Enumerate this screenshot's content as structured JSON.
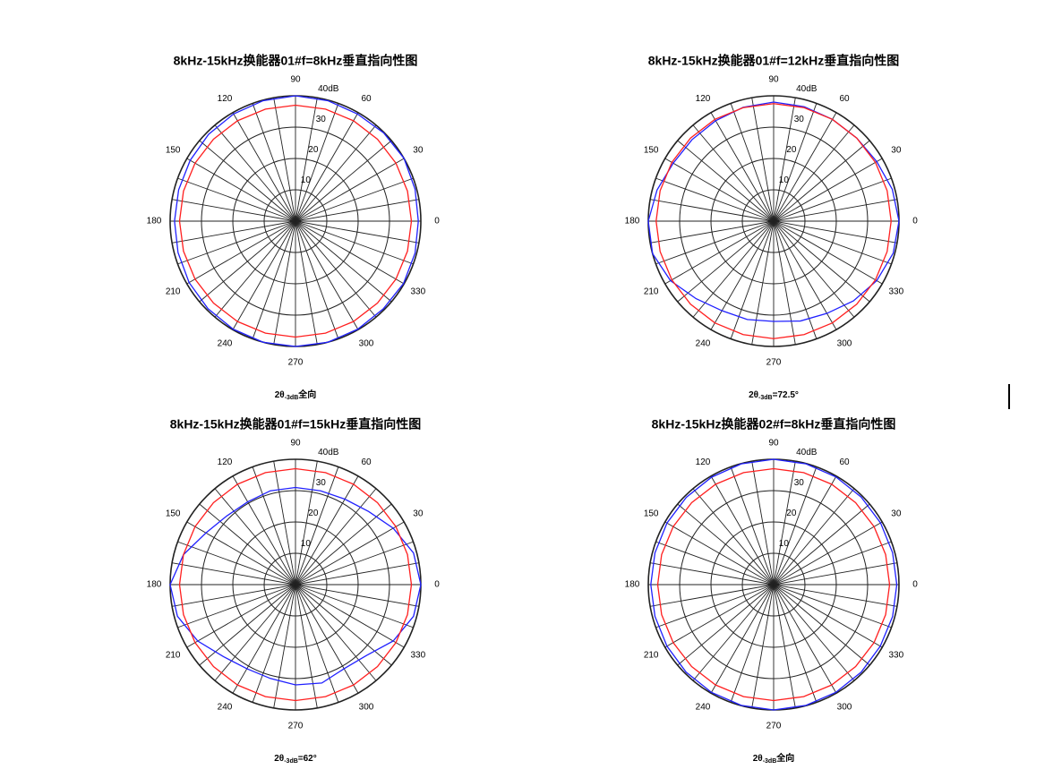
{
  "chart_data": [
    {
      "type": "polar",
      "title": "8kHz-15kHz换能器01#f=8kHz垂直指向性图",
      "caption": {
        "symbol": "2θ",
        "subscript": "-3dB",
        "value": "全向"
      },
      "theta": [
        0,
        15,
        30,
        45,
        60,
        75,
        90,
        105,
        120,
        135,
        150,
        165,
        180,
        195,
        210,
        225,
        240,
        255,
        270,
        285,
        300,
        315,
        330,
        345
      ],
      "series": [
        {
          "color": "#2020ff",
          "values": [
            39.2,
            39.5,
            40,
            39.8,
            39.5,
            39.8,
            40,
            39.8,
            39.5,
            39.2,
            38.8,
            38.6,
            38.6,
            38.8,
            39.2,
            39.5,
            39.8,
            40,
            40,
            40,
            39.8,
            39.6,
            39.8,
            39.5
          ]
        },
        {
          "color": "#ff2020",
          "values": [
            37,
            37,
            37,
            37,
            37,
            37,
            37,
            37,
            37,
            37,
            37,
            37,
            37,
            37,
            37,
            37,
            37,
            37,
            37,
            37,
            37,
            37,
            37,
            37
          ]
        }
      ],
      "rlim": [
        0,
        40
      ],
      "rticks": [
        10,
        20,
        30,
        {
          "value": 40,
          "label": "40dB"
        }
      ],
      "thetaticks": [
        0,
        30,
        60,
        90,
        120,
        150,
        180,
        210,
        240,
        270,
        300,
        330
      ],
      "thetagrid": [
        0,
        10,
        20,
        30,
        40,
        50,
        60,
        70,
        80,
        90,
        100,
        110,
        120,
        130,
        140,
        150,
        160,
        170,
        180,
        190,
        200,
        210,
        220,
        230,
        240,
        250,
        260,
        270,
        280,
        290,
        300,
        310,
        320,
        330,
        340,
        350
      ]
    },
    {
      "type": "polar",
      "title": "8kHz-15kHz换能器01#f=12kHz垂直指向性图",
      "caption": {
        "symbol": "2θ",
        "subscript": "-3dB",
        "value": "=72.5°"
      },
      "theta": [
        0,
        15,
        30,
        45,
        60,
        75,
        90,
        105,
        120,
        135,
        150,
        165,
        180,
        195,
        210,
        225,
        240,
        255,
        270,
        285,
        300,
        315,
        330,
        345
      ],
      "series": [
        {
          "color": "#2020ff",
          "values": [
            40,
            39.2,
            38,
            37.5,
            37.5,
            37.8,
            38,
            37.6,
            37,
            36.8,
            37,
            38.5,
            40,
            40,
            38,
            35,
            33,
            32.5,
            32,
            33,
            34,
            36,
            38,
            39.5
          ]
        },
        {
          "color": "#ff2020",
          "values": [
            37.5,
            37.5,
            37.5,
            37.5,
            37.5,
            37.5,
            37.5,
            37.5,
            37.5,
            37.5,
            37.5,
            37.5,
            37.5,
            37.5,
            37.5,
            37.5,
            37.5,
            37.5,
            37.5,
            37.5,
            37.5,
            37.5,
            37.5,
            37.5
          ]
        }
      ],
      "rlim": [
        0,
        40
      ],
      "rticks": [
        10,
        20,
        30,
        {
          "value": 40,
          "label": "40dB"
        }
      ],
      "thetaticks": [
        0,
        30,
        60,
        90,
        120,
        150,
        180,
        210,
        240,
        270,
        300,
        330
      ],
      "thetagrid": [
        0,
        10,
        20,
        30,
        40,
        50,
        60,
        70,
        80,
        90,
        100,
        110,
        120,
        130,
        140,
        150,
        160,
        170,
        180,
        190,
        200,
        210,
        220,
        230,
        240,
        250,
        260,
        270,
        280,
        290,
        300,
        310,
        320,
        330,
        340,
        350
      ]
    },
    {
      "type": "polar",
      "title": "8kHz-15kHz换能器01#f=15kHz垂直指向性图",
      "caption": {
        "symbol": "2θ",
        "subscript": "-3dB",
        "value": "=62°"
      },
      "theta": [
        0,
        15,
        30,
        45,
        60,
        75,
        90,
        105,
        120,
        135,
        150,
        165,
        180,
        195,
        210,
        225,
        240,
        255,
        270,
        285,
        300,
        315,
        330,
        345
      ],
      "series": [
        {
          "color": "#2020ff",
          "values": [
            40,
            39,
            36,
            33,
            31.5,
            31,
            31,
            31,
            30.5,
            31,
            33,
            37,
            40,
            39,
            36,
            32.5,
            31,
            31,
            32,
            32.5,
            31,
            32,
            36,
            39
          ]
        },
        {
          "color": "#ff2020",
          "values": [
            37,
            37,
            37,
            37,
            37,
            37,
            37,
            37,
            37,
            37,
            37,
            37,
            37,
            37,
            37,
            37,
            37,
            37,
            37,
            37,
            37,
            37,
            37,
            37
          ]
        }
      ],
      "rlim": [
        0,
        40
      ],
      "rticks": [
        10,
        20,
        30,
        {
          "value": 40,
          "label": "40dB"
        }
      ],
      "thetaticks": [
        0,
        30,
        60,
        90,
        120,
        150,
        180,
        210,
        240,
        270,
        300,
        330
      ],
      "thetagrid": [
        0,
        10,
        20,
        30,
        40,
        50,
        60,
        70,
        80,
        90,
        100,
        110,
        120,
        130,
        140,
        150,
        160,
        170,
        180,
        190,
        200,
        210,
        220,
        230,
        240,
        250,
        260,
        270,
        280,
        290,
        300,
        310,
        320,
        330,
        340,
        350
      ]
    },
    {
      "type": "polar",
      "title": "8kHz-15kHz换能器02#f=8kHz垂直指向性图",
      "caption": {
        "symbol": "2θ",
        "subscript": "-3dB",
        "value": "全向"
      },
      "theta": [
        0,
        15,
        30,
        45,
        60,
        75,
        90,
        105,
        120,
        135,
        150,
        165,
        180,
        195,
        210,
        225,
        240,
        255,
        270,
        285,
        300,
        315,
        330,
        345
      ],
      "series": [
        {
          "color": "#2020ff",
          "values": [
            39.3,
            39.3,
            39.4,
            39.5,
            39.7,
            39.9,
            40,
            39.9,
            39.6,
            39.4,
            39.3,
            39.2,
            39.2,
            39.2,
            39.3,
            39.5,
            39.7,
            39.9,
            40,
            39.9,
            39.7,
            39.5,
            39.3,
            39.3
          ]
        },
        {
          "color": "#ff2020",
          "values": [
            37,
            37,
            37,
            37,
            37,
            37,
            37,
            37,
            37,
            37,
            37,
            37,
            37,
            37,
            37,
            37,
            37,
            37,
            37,
            37,
            37,
            37,
            37,
            37
          ]
        }
      ],
      "rlim": [
        0,
        40
      ],
      "rticks": [
        10,
        20,
        30,
        {
          "value": 40,
          "label": "40dB"
        }
      ],
      "thetaticks": [
        0,
        30,
        60,
        90,
        120,
        150,
        180,
        210,
        240,
        270,
        300,
        330
      ],
      "thetagrid": [
        0,
        10,
        20,
        30,
        40,
        50,
        60,
        70,
        80,
        90,
        100,
        110,
        120,
        130,
        140,
        150,
        160,
        170,
        180,
        190,
        200,
        210,
        220,
        230,
        240,
        250,
        260,
        270,
        280,
        290,
        300,
        310,
        320,
        330,
        340,
        350
      ]
    }
  ]
}
